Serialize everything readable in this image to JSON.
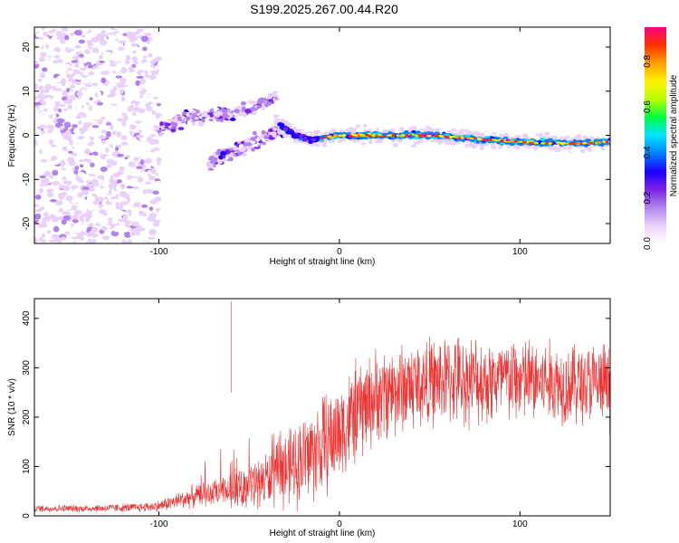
{
  "title": "S199.2025.267.00.44.R20",
  "chart_data": [
    {
      "type": "heatmap",
      "title": "",
      "xlabel": "Height of straight line (km)",
      "ylabel": "Frequency (Hz)",
      "xlim": [
        -169,
        150
      ],
      "ylim": [
        -24.5,
        24.5
      ],
      "xticks": [
        -100,
        0,
        100
      ],
      "yticks": [
        -20,
        -10,
        0,
        10,
        20
      ],
      "colorbar": {
        "label": "Normalized spectral amplitude",
        "range": [
          0,
          0.95
        ],
        "ticks": [
          "0.0",
          "0.2",
          "0.4",
          "0.6",
          "0.8"
        ],
        "colors": [
          "#ffffff",
          "#e9d1fb",
          "#b083ef",
          "#7a22e6",
          "#1b00ff",
          "#0080ff",
          "#00e5ff",
          "#00ff40",
          "#b8ff00",
          "#fff000",
          "#ffa000",
          "#ff3000",
          "#ff0080"
        ]
      },
      "features": [
        {
          "name": "left noise field",
          "x_range": [
            -169,
            -100
          ],
          "freq_range": [
            -24.5,
            24.5
          ],
          "amplitude": 0.1
        },
        {
          "name": "upper branch",
          "points": [
            [
              -100,
              1
            ],
            [
              -90,
              3
            ],
            [
              -80,
              4.5
            ],
            [
              -60,
              5
            ],
            [
              -45,
              6.5
            ],
            [
              -35,
              9
            ]
          ]
        },
        {
          "name": "lower branch",
          "points": [
            [
              -72,
              -6
            ],
            [
              -60,
              -4
            ],
            [
              -50,
              -2
            ],
            [
              -40,
              0
            ],
            [
              -30,
              1.5
            ]
          ]
        },
        {
          "name": "main signal",
          "points": [
            [
              -35,
              3
            ],
            [
              -25,
              0
            ],
            [
              -15,
              -1
            ],
            [
              0,
              0
            ],
            [
              20,
              0
            ],
            [
              50,
              0
            ],
            [
              80,
              -1
            ],
            [
              100,
              -1.5
            ],
            [
              130,
              -1.8
            ],
            [
              150,
              -1.5
            ]
          ],
          "amplitude_peak": 0.9
        }
      ]
    },
    {
      "type": "line",
      "xlabel": "Height of straight line (km)",
      "ylabel": "SNR (10 * v/v)",
      "xlim": [
        -169,
        150
      ],
      "ylim": [
        0,
        440
      ],
      "xticks": [
        -100,
        0,
        100
      ],
      "yticks": [
        0,
        100,
        200,
        300,
        400
      ],
      "series": [
        {
          "name": "SNR",
          "color": "#ee3333",
          "envelope": {
            "x": [
              -169,
              -140,
              -110,
              -100,
              -90,
              -80,
              -70,
              -60,
              -50,
              -40,
              -30,
              -20,
              -10,
              0,
              10,
              20,
              30,
              40,
              50,
              60,
              80,
              100,
              120,
              150
            ],
            "mean": [
              15,
              15,
              17,
              20,
              30,
              40,
              45,
              50,
              60,
              75,
              90,
              115,
              140,
              170,
              210,
              240,
              255,
              265,
              270,
              275,
              275,
              275,
              270,
              265
            ],
            "spread": [
              8,
              8,
              10,
              12,
              18,
              25,
              28,
              35,
              45,
              60,
              80,
              100,
              110,
              110,
              110,
              100,
              100,
              100,
              95,
              95,
              95,
              95,
              90,
              90
            ]
          },
          "max": [
            -60,
            435
          ]
        }
      ]
    }
  ]
}
